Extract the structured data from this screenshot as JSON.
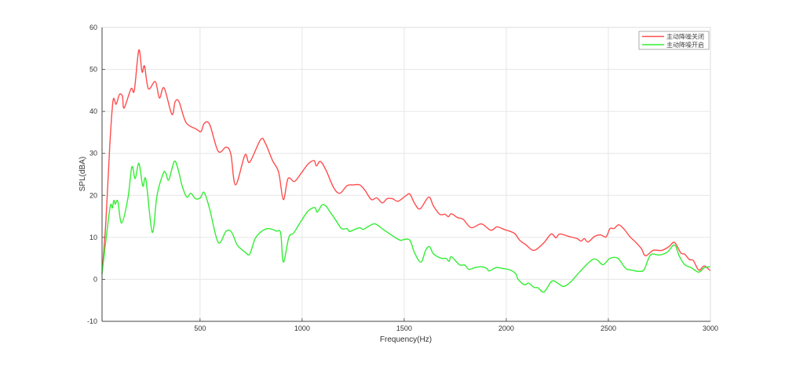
{
  "chart_data": {
    "type": "line",
    "title": "",
    "xlabel": "Frequency(Hz)",
    "ylabel": "SPL(dBA)",
    "xlim": [
      20,
      3000
    ],
    "ylim": [
      -10,
      60
    ],
    "xticks": [
      500,
      1000,
      1500,
      2000,
      2500,
      3000
    ],
    "yticks": [
      -10,
      0,
      10,
      20,
      30,
      40,
      50,
      60
    ],
    "grid": true,
    "legend_position": "top-right",
    "series": [
      {
        "name": "主动降噪关闭",
        "color": "#ff4d4d",
        "x": [
          20,
          39,
          58,
          74,
          89,
          105,
          120,
          128,
          162,
          178,
          200,
          216,
          228,
          247,
          281,
          301,
          324,
          362,
          378,
          397,
          431,
          481,
          505,
          520,
          547,
          589,
          628,
          651,
          674,
          720,
          743,
          797,
          820,
          855,
          885,
          908,
          931,
          962,
          993,
          1028,
          1058,
          1070,
          1089,
          1116,
          1155,
          1185,
          1220,
          1250,
          1282,
          1308,
          1339,
          1366,
          1393,
          1416,
          1443,
          1470,
          1508,
          1528,
          1551,
          1578,
          1620,
          1643,
          1674,
          1701,
          1716,
          1731,
          1762,
          1789,
          1828,
          1878,
          1924,
          1955,
          1989,
          2039,
          2066,
          2097,
          2135,
          2182,
          2220,
          2243,
          2262,
          2308,
          2347,
          2366,
          2382,
          2401,
          2432,
          2462,
          2489,
          2508,
          2528,
          2551,
          2578,
          2605,
          2635,
          2662,
          2682,
          2720,
          2762,
          2797,
          2824,
          2855,
          2874,
          2897,
          2916,
          2943,
          2970,
          3000
        ],
        "y": [
          1.3,
          14,
          32,
          42.6,
          41.7,
          44,
          43.6,
          40.8,
          45.4,
          45,
          54.6,
          49.4,
          50.8,
          45.4,
          47.1,
          43.2,
          45.6,
          39.3,
          42.3,
          42.3,
          37.4,
          35.8,
          35.2,
          37.1,
          36.9,
          30.5,
          31.5,
          29.8,
          22.5,
          29.6,
          27.9,
          33.3,
          32.4,
          28.3,
          25.5,
          19,
          24,
          23.3,
          25.1,
          27.4,
          28.3,
          27,
          28.1,
          26.1,
          21.8,
          20.5,
          22.3,
          22.5,
          22.5,
          21.2,
          19,
          19.4,
          18.2,
          19.2,
          19.2,
          18.6,
          19.9,
          20.3,
          18.1,
          16.8,
          19.6,
          17.5,
          15.5,
          15.5,
          14.9,
          15.6,
          14.7,
          14.3,
          12.3,
          13.2,
          11.7,
          12.5,
          11.9,
          11,
          9.3,
          8.2,
          6.9,
          8.6,
          10.8,
          9.9,
          10.8,
          10.2,
          9.7,
          9.1,
          9.7,
          8.9,
          10.2,
          10.6,
          10.1,
          12.1,
          12.1,
          13,
          11.9,
          10.2,
          8.8,
          7.3,
          5.6,
          6.9,
          6.9,
          7.8,
          8.8,
          6.3,
          6,
          4.7,
          4.5,
          2.2,
          3.2,
          2
        ]
      },
      {
        "name": "主动降噪开启",
        "color": "#33ee33",
        "x": [
          20,
          58,
          70,
          78,
          85,
          97,
          116,
          147,
          166,
          182,
          197,
          205,
          220,
          235,
          266,
          289,
          320,
          332,
          347,
          374,
          393,
          412,
          435,
          455,
          478,
          501,
          520,
          547,
          589,
          628,
          655,
          682,
          720,
          743,
          770,
          801,
          835,
          874,
          895,
          908,
          935,
          958,
          989,
          1028,
          1062,
          1074,
          1097,
          1116,
          1135,
          1162,
          1193,
          1220,
          1232,
          1258,
          1282,
          1300,
          1328,
          1358,
          1397,
          1451,
          1482,
          1500,
          1528,
          1551,
          1582,
          1605,
          1624,
          1643,
          1682,
          1705,
          1720,
          1731,
          1770,
          1797,
          1816,
          1847,
          1878,
          1905,
          1916,
          1951,
          1982,
          2020,
          2047,
          2058,
          2089,
          2110,
          2135,
          2155,
          2185,
          2224,
          2258,
          2281,
          2316,
          2358,
          2416,
          2443,
          2474,
          2508,
          2547,
          2585,
          2616,
          2647,
          2674,
          2693,
          2712,
          2751,
          2789,
          2824,
          2847,
          2874,
          2905,
          2943,
          2970,
          3000
        ],
        "y": [
          1.3,
          16.8,
          17,
          18.8,
          17.9,
          18.6,
          13.4,
          19.4,
          26.8,
          24,
          27.4,
          26.8,
          22.2,
          23.7,
          11.2,
          19.9,
          25.3,
          25.3,
          23.7,
          28.1,
          26.1,
          22.3,
          19.6,
          20.5,
          19.2,
          19.4,
          20.7,
          16.8,
          8.8,
          11.5,
          11.2,
          8.2,
          6.5,
          6,
          9.7,
          11.4,
          12.1,
          11.5,
          11,
          4.1,
          10,
          11,
          13.4,
          16.2,
          17.1,
          16,
          17.7,
          17.5,
          16.2,
          14.3,
          12.1,
          12.1,
          11.4,
          11.9,
          12.3,
          11.9,
          12.7,
          13.2,
          11.9,
          10.1,
          9.3,
          9.5,
          9.3,
          6.3,
          4.1,
          6.9,
          7.8,
          6.1,
          5,
          5,
          4.3,
          5.4,
          3.5,
          3.4,
          2.4,
          2.8,
          3,
          2.6,
          2,
          2.8,
          2.6,
          2.2,
          1.3,
          0,
          -1.3,
          -0.9,
          -1.9,
          -2,
          -3,
          -0.4,
          -1.1,
          -1.7,
          -0.6,
          1.7,
          4.5,
          4.7,
          3.5,
          5,
          5,
          2.6,
          2.2,
          1.9,
          2.2,
          4.5,
          6,
          5.8,
          6.5,
          8.2,
          5.6,
          3.5,
          2.8,
          1.7,
          2.8,
          3
        ]
      }
    ]
  }
}
